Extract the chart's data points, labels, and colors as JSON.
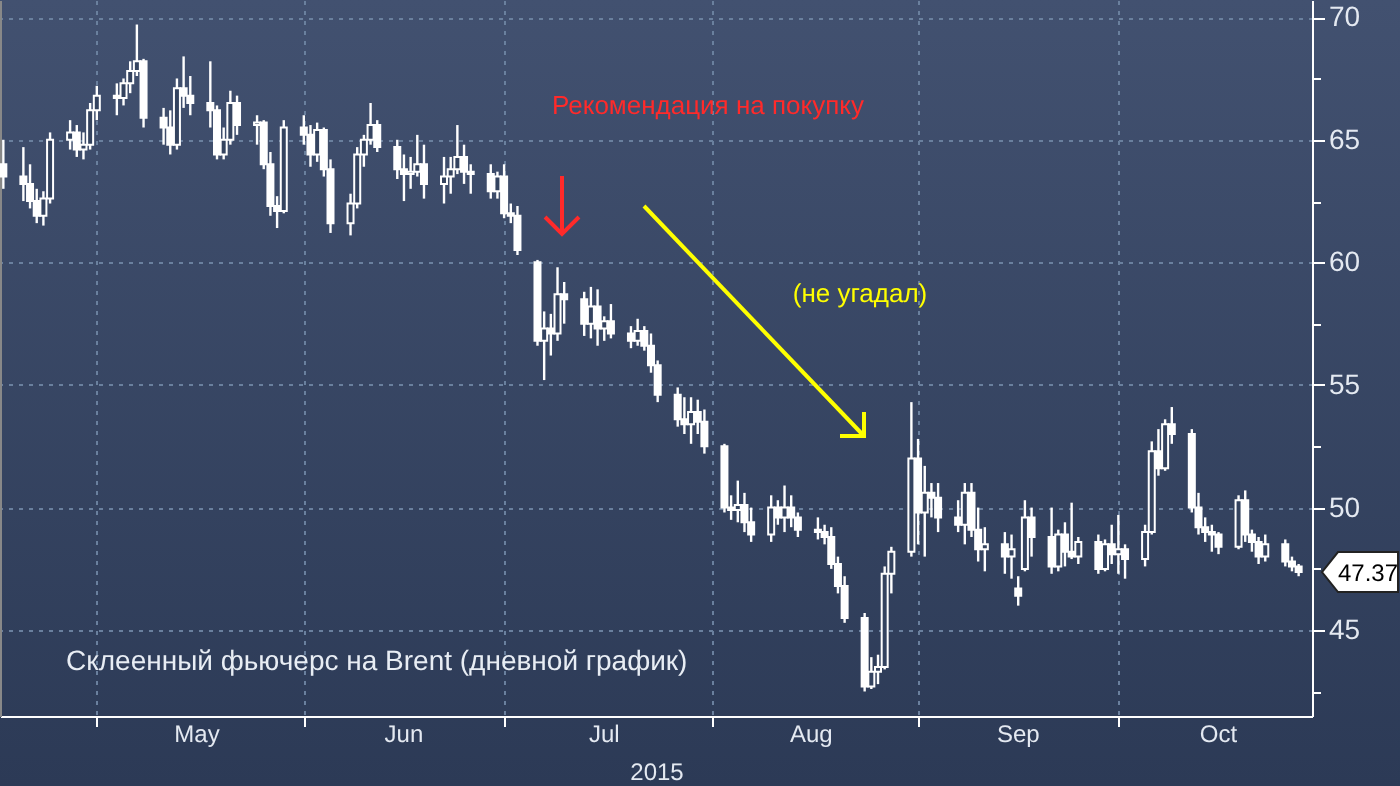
{
  "chart_data": {
    "type": "candlestick",
    "xlabel": "2015",
    "color": "#ffffff",
    "grid": true,
    "xlim": [
      "2015-04-16T12:00",
      "2015-10-30"
    ],
    "xticks": [
      {
        "value": "2015-05-01",
        "label": null
      },
      {
        "value": "2015-06-01",
        "label": null
      },
      {
        "value": "2015-07-01",
        "label": null
      },
      {
        "value": "2015-08-01",
        "label": null
      },
      {
        "value": "2015-09-01",
        "label": null
      },
      {
        "value": "2015-10-01",
        "label": null
      },
      {
        "value": "2015-05-16",
        "label": "May"
      },
      {
        "value": "2015-06-16",
        "label": "Jun"
      },
      {
        "value": "2015-07-16",
        "label": "Jul"
      },
      {
        "value": "2015-08-16",
        "label": "Aug"
      },
      {
        "value": "2015-09-16",
        "label": "Sep"
      },
      {
        "value": "2015-10-16",
        "label": "Oct"
      }
    ],
    "ylim": [
      41.5,
      70.7
    ],
    "yticks": [
      {
        "value": 42.5,
        "label": null
      },
      45,
      {
        "value": 47.5,
        "label": null
      },
      50,
      {
        "value": 52.5,
        "label": null
      },
      55,
      {
        "value": 57.5,
        "label": null
      },
      60,
      {
        "value": 62.5,
        "label": null
      },
      65,
      {
        "value": 67.5,
        "label": null
      },
      70
    ],
    "annotations": [
      "Рекомендация на покупку",
      "(не угадал)",
      "Склеенный фьючерс на Brent (дневной график)",
      "47.37"
    ],
    "x": [
      "2015-04-17",
      "2015-04-20",
      "2015-04-21",
      "2015-04-22",
      "2015-04-23",
      "2015-04-24",
      "2015-04-27",
      "2015-04-28",
      "2015-04-29",
      "2015-04-30",
      "2015-05-01",
      "2015-05-04",
      "2015-05-05",
      "2015-05-06",
      "2015-05-07",
      "2015-05-08",
      "2015-05-11",
      "2015-05-12",
      "2015-05-13",
      "2015-05-14",
      "2015-05-15",
      "2015-05-18",
      "2015-05-19",
      "2015-05-20",
      "2015-05-21",
      "2015-05-22",
      "2015-05-25",
      "2015-05-26",
      "2015-05-27",
      "2015-05-28",
      "2015-05-29",
      "2015-06-01",
      "2015-06-02",
      "2015-06-03",
      "2015-06-04",
      "2015-06-05",
      "2015-06-08",
      "2015-06-09",
      "2015-06-10",
      "2015-06-11",
      "2015-06-12",
      "2015-06-15",
      "2015-06-16",
      "2015-06-17",
      "2015-06-18",
      "2015-06-19",
      "2015-06-22",
      "2015-06-23",
      "2015-06-24",
      "2015-06-25",
      "2015-06-26",
      "2015-06-29",
      "2015-06-30",
      "2015-07-01",
      "2015-07-02",
      "2015-07-03",
      "2015-07-06",
      "2015-07-07",
      "2015-07-08",
      "2015-07-09",
      "2015-07-10",
      "2015-07-13",
      "2015-07-14",
      "2015-07-15",
      "2015-07-16",
      "2015-07-17",
      "2015-07-20",
      "2015-07-21",
      "2015-07-22",
      "2015-07-23",
      "2015-07-24",
      "2015-07-27",
      "2015-07-28",
      "2015-07-29",
      "2015-07-30",
      "2015-07-31",
      "2015-08-03",
      "2015-08-04",
      "2015-08-05",
      "2015-08-06",
      "2015-08-07",
      "2015-08-10",
      "2015-08-11",
      "2015-08-12",
      "2015-08-13",
      "2015-08-14",
      "2015-08-17",
      "2015-08-18",
      "2015-08-19",
      "2015-08-20",
      "2015-08-21",
      "2015-08-24",
      "2015-08-25",
      "2015-08-26",
      "2015-08-27",
      "2015-08-28",
      "2015-08-31",
      "2015-09-01",
      "2015-09-02",
      "2015-09-03",
      "2015-09-04",
      "2015-09-07",
      "2015-09-08",
      "2015-09-09",
      "2015-09-10",
      "2015-09-11",
      "2015-09-14",
      "2015-09-15",
      "2015-09-16",
      "2015-09-17",
      "2015-09-18",
      "2015-09-21",
      "2015-09-22",
      "2015-09-23",
      "2015-09-24",
      "2015-09-25",
      "2015-09-28",
      "2015-09-29",
      "2015-09-30",
      "2015-10-01",
      "2015-10-02",
      "2015-10-05",
      "2015-10-06",
      "2015-10-07",
      "2015-10-08",
      "2015-10-09",
      "2015-10-12",
      "2015-10-13",
      "2015-10-14",
      "2015-10-15",
      "2015-10-16",
      "2015-10-19",
      "2015-10-20",
      "2015-10-21",
      "2015-10-22",
      "2015-10-23",
      "2015-10-26",
      "2015-10-27",
      "2015-10-28"
    ],
    "ohlc": [
      [
        64,
        65,
        63,
        63.5
      ],
      [
        63.5,
        64.7,
        62.5,
        63.2
      ],
      [
        63.2,
        64,
        62.2,
        62.5
      ],
      [
        62.5,
        63,
        61.6,
        61.9
      ],
      [
        61.9,
        62.9,
        61.5,
        62.6
      ],
      [
        62.6,
        65.3,
        62.4,
        65
      ],
      [
        65,
        65.8,
        64.6,
        65.3
      ],
      [
        65.3,
        65.6,
        64.3,
        64.6
      ],
      [
        64.6,
        65.3,
        64.2,
        64.8
      ],
      [
        64.8,
        66.5,
        64.6,
        66.2
      ],
      [
        66.2,
        67.2,
        65.8,
        66.8
      ],
      [
        66.8,
        67.3,
        66,
        66.7
      ],
      [
        66.7,
        67.5,
        66.4,
        67.3
      ],
      [
        67.3,
        68.2,
        66.9,
        67.8
      ],
      [
        67.8,
        69.7,
        67.6,
        68.2
      ],
      [
        68.2,
        68.3,
        65.5,
        65.9
      ],
      [
        65.9,
        66.3,
        64.8,
        65.5
      ],
      [
        65.5,
        66.2,
        64.4,
        64.8
      ],
      [
        64.8,
        67.5,
        64.6,
        67.1
      ],
      [
        67.1,
        68.4,
        66.3,
        66.8
      ],
      [
        66.8,
        67.6,
        66,
        66.5
      ],
      [
        66.5,
        68.2,
        65.5,
        66.2
      ],
      [
        66.2,
        66.4,
        64.2,
        64.4
      ],
      [
        64.4,
        65.5,
        64.2,
        65
      ],
      [
        65,
        67,
        64.8,
        66.5
      ],
      [
        66.5,
        66.8,
        65.2,
        65.6
      ],
      [
        65.6,
        66,
        64.8,
        65.7
      ],
      [
        65.7,
        65.8,
        63.8,
        64
      ],
      [
        64,
        64.5,
        61.9,
        62.3
      ],
      [
        62.3,
        62.7,
        61.4,
        62.1
      ],
      [
        62.1,
        65.8,
        62,
        65.5
      ],
      [
        65.5,
        66,
        64.8,
        65.2
      ],
      [
        65.2,
        65.6,
        63.9,
        64.4
      ],
      [
        64.4,
        65.7,
        64.1,
        65.4
      ],
      [
        65.4,
        65.5,
        63.5,
        63.8
      ],
      [
        63.8,
        64.2,
        61.2,
        61.6
      ],
      [
        61.6,
        62.8,
        61.1,
        62.4
      ],
      [
        62.4,
        64.7,
        62.2,
        64.4
      ],
      [
        64.4,
        65.2,
        63.9,
        65
      ],
      [
        65,
        66.5,
        64.8,
        65.6
      ],
      [
        65.6,
        65.8,
        64.5,
        64.7
      ],
      [
        64.7,
        65,
        63.4,
        63.8
      ],
      [
        63.8,
        64.4,
        62.5,
        63.6
      ],
      [
        63.6,
        64.3,
        63,
        63.7
      ],
      [
        63.7,
        65.2,
        63.5,
        64
      ],
      [
        64,
        64.8,
        62.6,
        63.2
      ],
      [
        63.2,
        64.3,
        62.4,
        63.5
      ],
      [
        63.5,
        64.3,
        62.8,
        63.8
      ],
      [
        63.8,
        65.6,
        63.6,
        64.3
      ],
      [
        64.3,
        64.8,
        63.2,
        63.7
      ],
      [
        63.7,
        64,
        62.8,
        63.6
      ],
      [
        63.6,
        64,
        62.6,
        62.9
      ],
      [
        62.9,
        63.7,
        62.6,
        63.5
      ],
      [
        63.5,
        64,
        61.8,
        62
      ],
      [
        62,
        62.4,
        61.6,
        61.9
      ],
      [
        61.9,
        62.3,
        60.3,
        60.5
      ],
      [
        60,
        60.1,
        56.6,
        56.8
      ],
      [
        56.8,
        58,
        55.2,
        57.3
      ],
      [
        57.3,
        57.9,
        56.2,
        57.1
      ],
      [
        57.1,
        59.8,
        56.8,
        58.7
      ],
      [
        58.7,
        59.2,
        57.5,
        58.5
      ],
      [
        58.5,
        58.8,
        57,
        57.5
      ],
      [
        57.5,
        59,
        56.9,
        58.2
      ],
      [
        58.2,
        58.9,
        56.6,
        57.3
      ],
      [
        57.3,
        57.8,
        56.8,
        57.6
      ],
      [
        57.6,
        58.3,
        56.9,
        57.1
      ],
      [
        57.1,
        57.4,
        56.5,
        56.8
      ],
      [
        56.8,
        57.7,
        56.6,
        57.2
      ],
      [
        57.2,
        57.4,
        56.4,
        56.6
      ],
      [
        56.6,
        57.1,
        55.5,
        55.8
      ],
      [
        55.8,
        56,
        54.3,
        54.6
      ],
      [
        54.6,
        54.9,
        53.3,
        53.6
      ],
      [
        53.6,
        54.5,
        53,
        53.4
      ],
      [
        53.4,
        54.5,
        52.6,
        53.9
      ],
      [
        53.9,
        54.4,
        53,
        53.5
      ],
      [
        53.5,
        54,
        52.2,
        52.5
      ],
      [
        52.5,
        52.6,
        49.8,
        50
      ],
      [
        50,
        50.5,
        49.5,
        49.9
      ],
      [
        49.9,
        51.1,
        49.4,
        50.1
      ],
      [
        50.1,
        50.6,
        49,
        49.4
      ],
      [
        49.4,
        50,
        48.6,
        48.9
      ],
      [
        48.9,
        50.5,
        48.6,
        50
      ],
      [
        50,
        50.3,
        49.3,
        49.6
      ],
      [
        49.6,
        50.9,
        49,
        50
      ],
      [
        50,
        50.5,
        49.2,
        49.6
      ],
      [
        49.6,
        49.8,
        48.8,
        49.1
      ],
      [
        49.1,
        49.6,
        48.7,
        49
      ],
      [
        49,
        49.3,
        48.5,
        48.8
      ],
      [
        48.8,
        49.2,
        47.5,
        47.7
      ],
      [
        47.7,
        48,
        46.5,
        46.8
      ],
      [
        46.8,
        47.2,
        45.3,
        45.5
      ],
      [
        45.5,
        45.7,
        42.5,
        42.7
      ],
      [
        42.7,
        43.9,
        42.6,
        43.3
      ],
      [
        43.3,
        44,
        42.8,
        43.5
      ],
      [
        43.5,
        47.6,
        43.4,
        47.3
      ],
      [
        47.3,
        48.4,
        46.5,
        48.2
      ],
      [
        48.2,
        54.3,
        48,
        52
      ],
      [
        52,
        52.8,
        48.5,
        49.8
      ],
      [
        49.8,
        51.7,
        48,
        50.6
      ],
      [
        50.6,
        51,
        49.6,
        50.4
      ],
      [
        50.4,
        51,
        49,
        49.6
      ],
      [
        49.6,
        50.3,
        49,
        49.3
      ],
      [
        49.3,
        51,
        48.5,
        50.6
      ],
      [
        50.6,
        51,
        48.8,
        49.1
      ],
      [
        49.1,
        50,
        47.8,
        48.3
      ],
      [
        48.3,
        49.2,
        47.4,
        48.5
      ],
      [
        48.5,
        49,
        47.3,
        48
      ],
      [
        48,
        48.9,
        47.1,
        48.3
      ],
      [
        46.7,
        47.2,
        46,
        46.4
      ],
      [
        47.5,
        50.3,
        47.4,
        49.6
      ],
      [
        49.6,
        50,
        48,
        48.8
      ],
      [
        48.8,
        50,
        47.3,
        47.6
      ],
      [
        47.6,
        49.1,
        47.4,
        48.9
      ],
      [
        48.9,
        49.4,
        47.6,
        48.2
      ],
      [
        48.2,
        50.2,
        47.9,
        48
      ],
      [
        48,
        48.8,
        47.7,
        48.6
      ],
      [
        48.6,
        48.9,
        47.3,
        47.5
      ],
      [
        47.5,
        48.7,
        47.4,
        48.5
      ],
      [
        48.5,
        49.3,
        47.7,
        48.1
      ],
      [
        48.1,
        49.7,
        47.3,
        48.3
      ],
      [
        48.3,
        48.5,
        47.1,
        47.9
      ],
      [
        47.9,
        49.3,
        47.6,
        49
      ],
      [
        49,
        52.7,
        48.9,
        52.3
      ],
      [
        52.3,
        53.2,
        51.3,
        51.6
      ],
      [
        51.6,
        53.6,
        51.5,
        53.4
      ],
      [
        53.4,
        54.1,
        52.6,
        53
      ],
      [
        53,
        53.2,
        49.8,
        50
      ],
      [
        50,
        50.6,
        48.9,
        49.2
      ],
      [
        49.2,
        49.6,
        48.6,
        49
      ],
      [
        49,
        49.3,
        48.2,
        48.9
      ],
      [
        48.9,
        49,
        48.1,
        48.4
      ],
      [
        48.4,
        50.5,
        48.3,
        50.3
      ],
      [
        50.3,
        50.7,
        48.6,
        48.9
      ],
      [
        48.9,
        49.1,
        48.2,
        48.6
      ],
      [
        48.6,
        48.8,
        47.7,
        48
      ],
      [
        48,
        48.9,
        47.8,
        48.5
      ],
      [
        48.5,
        48.7,
        47.6,
        47.8
      ],
      [
        47.8,
        48,
        47.4,
        47.6
      ],
      [
        47.6,
        47.7,
        47.2,
        47.37
      ]
    ]
  }
}
